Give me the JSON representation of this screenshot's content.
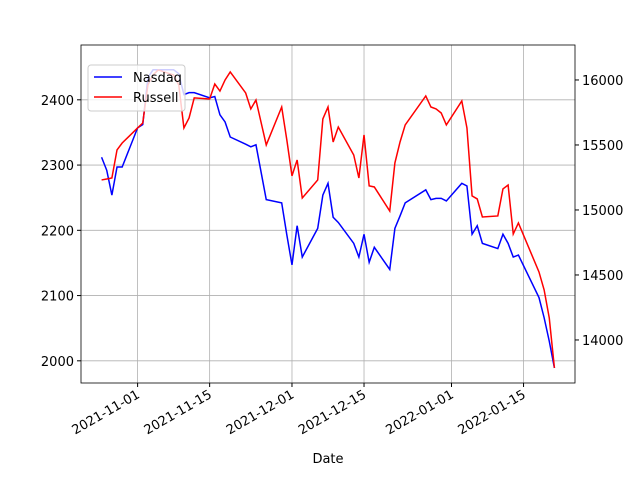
{
  "chart_data": {
    "type": "line",
    "xlabel": "Date",
    "x": [
      "2021-10-25",
      "2021-10-26",
      "2021-10-27",
      "2021-10-28",
      "2021-10-29",
      "2021-11-01",
      "2021-11-02",
      "2021-11-03",
      "2021-11-04",
      "2021-11-05",
      "2021-11-08",
      "2021-11-09",
      "2021-11-10",
      "2021-11-11",
      "2021-11-12",
      "2021-11-15",
      "2021-11-16",
      "2021-11-17",
      "2021-11-18",
      "2021-11-19",
      "2021-11-22",
      "2021-11-23",
      "2021-11-24",
      "2021-11-26",
      "2021-11-29",
      "2021-11-30",
      "2021-12-01",
      "2021-12-02",
      "2021-12-03",
      "2021-12-06",
      "2021-12-07",
      "2021-12-08",
      "2021-12-09",
      "2021-12-10",
      "2021-12-13",
      "2021-12-14",
      "2021-12-15",
      "2021-12-16",
      "2021-12-17",
      "2021-12-20",
      "2021-12-21",
      "2021-12-22",
      "2021-12-23",
      "2021-12-27",
      "2021-12-28",
      "2021-12-29",
      "2021-12-30",
      "2021-12-31",
      "2022-01-03",
      "2022-01-04",
      "2022-01-05",
      "2022-01-06",
      "2022-01-07",
      "2022-01-10",
      "2022-01-11",
      "2022-01-12",
      "2022-01-13",
      "2022-01-14",
      "2022-01-18",
      "2022-01-19",
      "2022-01-20",
      "2022-01-21"
    ],
    "series": [
      {
        "name": "Nasdaq",
        "color": "#0000ff",
        "axis": "y",
        "values": [
          2312,
          2292,
          2254,
          2297,
          2297,
          2357,
          2362,
          2434,
          2446,
          2446,
          2446,
          2440,
          2408,
          2411,
          2411,
          2403,
          2405,
          2377,
          2366,
          2343,
          2332,
          2328,
          2331,
          2247,
          2242,
          2193,
          2147,
          2207,
          2159,
          2203,
          2254,
          2272,
          2220,
          2212,
          2180,
          2159,
          2194,
          2151,
          2174,
          2140,
          2203,
          2222,
          2242,
          2262,
          2247,
          2249,
          2249,
          2245,
          2272,
          2268,
          2194,
          2207,
          2180,
          2172,
          2194,
          2180,
          2159,
          2162,
          2097,
          2066,
          2030,
          1989
        ]
      },
      {
        "name": "Russell",
        "color": "#ff0000",
        "axis": "y2",
        "values": [
          15231,
          15238,
          15246,
          15462,
          15515,
          15631,
          15669,
          15962,
          16038,
          16077,
          16038,
          15962,
          15631,
          15708,
          15862,
          15854,
          15969,
          15915,
          16000,
          16062,
          15900,
          15777,
          15846,
          15500,
          15792,
          15538,
          15262,
          15385,
          15092,
          15231,
          15700,
          15792,
          15523,
          15638,
          15423,
          15246,
          15577,
          15185,
          15177,
          14992,
          15362,
          15523,
          15654,
          15877,
          15792,
          15777,
          15746,
          15654,
          15838,
          15631,
          15108,
          15085,
          14946,
          14954,
          15162,
          15192,
          14815,
          14900,
          14523,
          14385,
          14169,
          13785
        ]
      }
    ],
    "xlim": [
      "2021-10-21",
      "2022-01-25"
    ],
    "xticks": [
      "2021-11-01",
      "2021-11-15",
      "2021-12-01",
      "2021-12-15",
      "2022-01-01",
      "2022-01-15"
    ],
    "ylim": [
      1966,
      2484
    ],
    "yticks": [
      2000,
      2100,
      2200,
      2300,
      2400
    ],
    "y2lim": [
      13669,
      16269
    ],
    "y2ticks": [
      14000,
      14500,
      15000,
      15500,
      16000
    ],
    "grid": true,
    "legend": "upper left"
  }
}
